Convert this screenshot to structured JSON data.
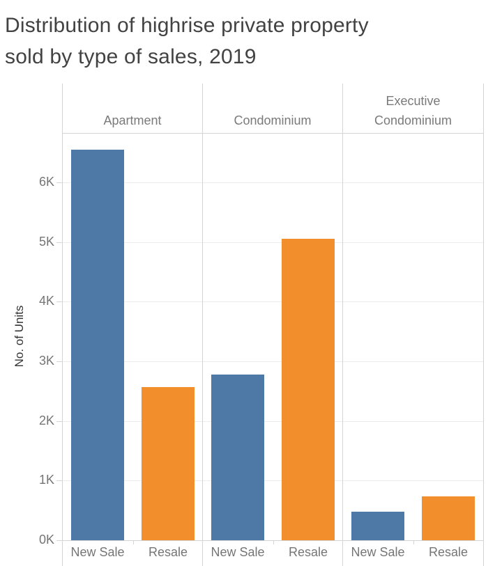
{
  "title": {
    "line1": "Distribution of highrise private property",
    "line2": "sold by type of sales, 2019"
  },
  "colors": {
    "new_sale": "#4e79a7",
    "resale": "#f28e2b",
    "gridline": "#ececec",
    "border": "#d4d4d4",
    "title_text": "#424242",
    "axis_title_text": "#333333",
    "tick_label_text": "#757575",
    "header_text": "#7a7a7a"
  },
  "chart_data": {
    "type": "bar",
    "title": "Distribution of highrise private property sold by type of sales, 2019",
    "ylabel": "No. of Units",
    "ylim": [
      0,
      6830
    ],
    "grid": "horizontal",
    "legend": "none",
    "yticks": [
      {
        "value": 0,
        "label": "0K"
      },
      {
        "value": 1000,
        "label": "1K"
      },
      {
        "value": 2000,
        "label": "2K"
      },
      {
        "value": 3000,
        "label": "3K"
      },
      {
        "value": 4000,
        "label": "4K"
      },
      {
        "value": 5000,
        "label": "5K"
      },
      {
        "value": 6000,
        "label": "6K"
      }
    ],
    "panels": [
      {
        "category": "Apartment",
        "header_lines": [
          "Apartment"
        ],
        "bars": [
          {
            "label": "New Sale",
            "value": 6550,
            "series": "New Sale",
            "color_key": "new_sale"
          },
          {
            "label": "Resale",
            "value": 2570,
            "series": "Resale",
            "color_key": "resale"
          }
        ]
      },
      {
        "category": "Condominium",
        "header_lines": [
          "Condominium"
        ],
        "bars": [
          {
            "label": "New Sale",
            "value": 2780,
            "series": "New Sale",
            "color_key": "new_sale"
          },
          {
            "label": "Resale",
            "value": 5050,
            "series": "Resale",
            "color_key": "resale"
          }
        ]
      },
      {
        "category": "Executive Condominium",
        "header_lines": [
          "Executive",
          "Condominium"
        ],
        "bars": [
          {
            "label": "New Sale",
            "value": 480,
            "series": "New Sale",
            "color_key": "new_sale"
          },
          {
            "label": "Resale",
            "value": 730,
            "series": "Resale",
            "color_key": "resale"
          }
        ]
      }
    ]
  }
}
